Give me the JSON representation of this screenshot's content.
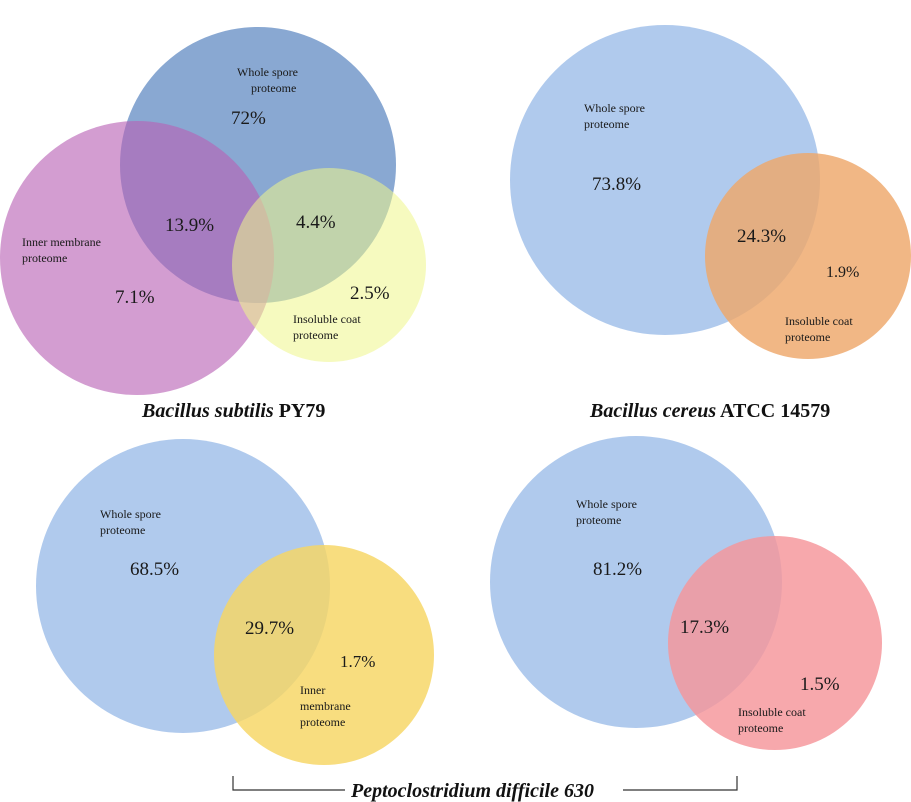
{
  "diagrams": {
    "bs": {
      "whole": {
        "label1": "Whole spore",
        "label2": "proteome",
        "pct": "72%"
      },
      "inner": {
        "label1": "Inner membrane",
        "label2": "proteome",
        "pct": "7.1%"
      },
      "coat": {
        "label1": "Insoluble coat",
        "label2": "proteome",
        "pct": "2.5%"
      },
      "overlap_whole_inner": "13.9%",
      "overlap_whole_coat": "4.4%",
      "title_italic": "Bacillus subtilis",
      "title_plain": " PY79",
      "colors": {
        "whole": "#5b86c0",
        "inner": "#b861b4",
        "coat": "#eef58a"
      }
    },
    "bc": {
      "whole": {
        "label1": "Whole spore",
        "label2": "proteome",
        "pct": "73.8%"
      },
      "coat": {
        "label1": "Insoluble coat",
        "label2": "proteome",
        "pct": "1.9%"
      },
      "overlap": "24.3%",
      "title_italic": "Bacillus cereus",
      "title_plain": " ATCC 14579",
      "colors": {
        "whole": "#a7c4eb",
        "coat": "#eea76a"
      }
    },
    "pd_inner": {
      "whole": {
        "label1": "Whole spore",
        "label2": "proteome",
        "pct": "68.5%"
      },
      "inner": {
        "label1": "Inner",
        "label2": "membrane",
        "label3": "proteome",
        "pct": "1.7%"
      },
      "overlap": "29.7%",
      "colors": {
        "whole": "#a7c4eb",
        "inner": "#f7d563"
      }
    },
    "pd_coat": {
      "whole": {
        "label1": "Whole spore",
        "label2": "proteome",
        "pct": "81.2%"
      },
      "coat": {
        "label1": "Insoluble coat",
        "label2": "proteome",
        "pct": "1.5%"
      },
      "overlap": "17.3%",
      "colors": {
        "whole": "#a7c4eb",
        "coat": "#f5959a"
      }
    },
    "pd_title": "Peptoclostridium difficile 630"
  }
}
